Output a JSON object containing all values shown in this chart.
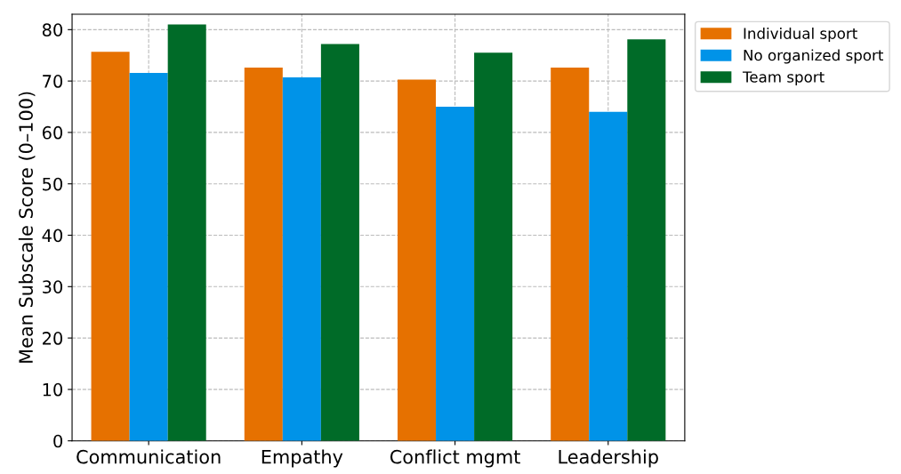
{
  "chart_data": {
    "type": "bar",
    "ylabel": "Mean Subscale Score (0–100)",
    "categories": [
      "Communication",
      "Empathy",
      "Conflict mgmt",
      "Leadership"
    ],
    "series": [
      {
        "name": "Individual sport",
        "color": "#e67100",
        "values": [
          75.7,
          72.6,
          70.3,
          72.6
        ]
      },
      {
        "name": "No organized sport",
        "color": "#0093e8",
        "values": [
          71.6,
          70.7,
          65.0,
          64.0
        ]
      },
      {
        "name": "Team sport",
        "color": "#006b28",
        "values": [
          81.0,
          77.2,
          75.5,
          78.1
        ]
      }
    ],
    "ylim": [
      0,
      83
    ],
    "yticks": [
      0,
      10,
      20,
      30,
      40,
      50,
      60,
      70,
      80
    ],
    "grid": true,
    "legend": "top right"
  }
}
